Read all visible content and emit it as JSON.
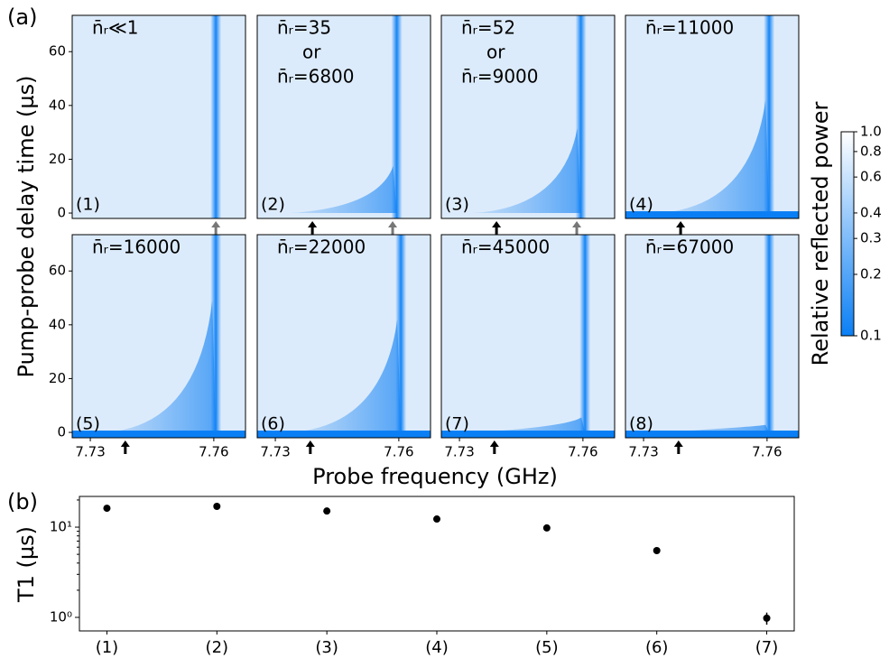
{
  "panel_a": {
    "label": "(a)",
    "ylabel": "Pump-probe delay time (µs)",
    "xlabel": "Probe frequency (GHz)",
    "xlim": [
      7.7256,
      7.7677
    ],
    "xticks": [
      7.73,
      7.76
    ],
    "ylim": [
      -2,
      73.5
    ],
    "yticks": [
      0,
      20,
      40,
      60
    ],
    "panels": [
      {
        "label": "(1)",
        "annotations": [
          {
            "text": "n̄ᵣ≪1",
            "color": "#777777"
          }
        ],
        "resonance": 7.7605,
        "arrows": [
          {
            "x": 7.7605,
            "color": "#777777"
          }
        ],
        "pump_band": false
      },
      {
        "label": "(2)",
        "annotations": [
          {
            "text": "n̄ᵣ=35",
            "color": "#777777"
          },
          {
            "text": "or",
            "color": "#000000"
          },
          {
            "text": "n̄ᵣ=6800",
            "color": "#000000"
          }
        ],
        "resonance": 7.7595,
        "arrows": [
          {
            "x": 7.739,
            "color": "#000000"
          },
          {
            "x": 7.7585,
            "color": "#777777"
          }
        ],
        "pump_band": false
      },
      {
        "label": "(3)",
        "annotations": [
          {
            "text": "n̄ᵣ=52",
            "color": "#777777"
          },
          {
            "text": "or",
            "color": "#000000"
          },
          {
            "text": "n̄ᵣ=9000",
            "color": "#000000"
          }
        ],
        "resonance": 7.7595,
        "arrows": [
          {
            "x": 7.739,
            "color": "#000000"
          },
          {
            "x": 7.7585,
            "color": "#777777"
          }
        ],
        "pump_band": false
      },
      {
        "label": "(4)",
        "annotations": [
          {
            "text": "n̄ᵣ=11000",
            "color": "#000000"
          }
        ],
        "resonance": 7.7605,
        "arrows": [
          {
            "x": 7.739,
            "color": "#000000"
          }
        ],
        "pump_band": true
      },
      {
        "label": "(5)",
        "annotations": [
          {
            "text": "n̄ᵣ=16000",
            "color": "#000000"
          }
        ],
        "resonance": 7.7605,
        "arrows": [
          {
            "x": 7.7385,
            "color": "#000000"
          }
        ],
        "pump_band": true
      },
      {
        "label": "(6)",
        "annotations": [
          {
            "text": "n̄ᵣ=22000",
            "color": "#000000"
          }
        ],
        "resonance": 7.7605,
        "arrows": [
          {
            "x": 7.7385,
            "color": "#000000"
          }
        ],
        "pump_band": true
      },
      {
        "label": "(7)",
        "annotations": [
          {
            "text": "n̄ᵣ=45000",
            "color": "#000000"
          }
        ],
        "resonance": 7.7605,
        "arrows": [
          {
            "x": 7.7385,
            "color": "#000000"
          }
        ],
        "pump_band": true
      },
      {
        "label": "(8)",
        "annotations": [
          {
            "text": "n̄ᵣ=67000",
            "color": "#000000"
          }
        ],
        "resonance": 7.7605,
        "arrows": [
          {
            "x": 7.7385,
            "color": "#000000"
          }
        ],
        "pump_band": true
      }
    ],
    "colorbar": {
      "label": "Relative reflected power",
      "lim": [
        0.1,
        1
      ],
      "log": true,
      "ticks": [
        {
          "value": 1,
          "label": "1.0"
        },
        0.8,
        0.6,
        0.4,
        0.3,
        0.2,
        0.1
      ],
      "colors": [
        "#0a7ff5",
        "#ffffff"
      ]
    }
  },
  "chart_data": {
    "type": "scatter",
    "label": "(b)",
    "ylabel": "T1 (µs)",
    "categories": [
      "(1)",
      "(2)",
      "(3)",
      "(4)",
      "(5)",
      "(6)",
      "(7)"
    ],
    "series": [
      {
        "color": "#000000",
        "values": [
          16.2,
          17,
          15.1,
          12.3,
          9.8,
          5.5,
          0.98
        ],
        "errors": [
          0.4,
          0.4,
          0.4,
          0.4,
          0.3,
          0.2,
          0.15
        ]
      }
    ],
    "ylim": [
      0.708,
      21.9
    ],
    "log_y": true,
    "yticks": [
      {
        "value": 1,
        "label": "10⁰"
      },
      {
        "value": 10,
        "label": "10¹"
      }
    ],
    "yminorticks": [
      2,
      3,
      4,
      5,
      6,
      7,
      8,
      9,
      20
    ]
  }
}
